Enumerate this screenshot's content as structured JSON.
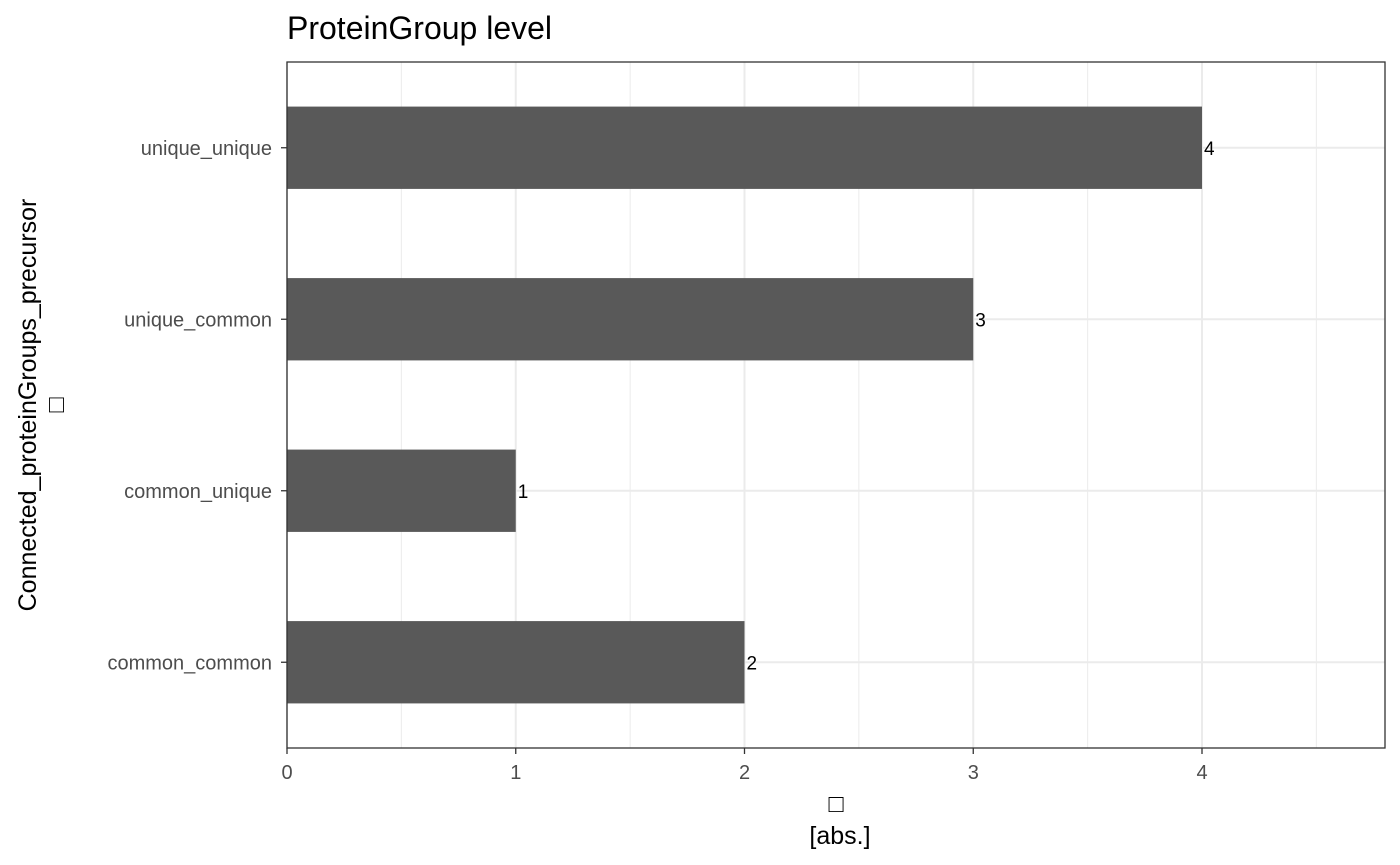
{
  "chart_data": {
    "type": "bar",
    "orientation": "horizontal",
    "title": "ProteinGroup level",
    "xlabel_glyph": "□",
    "xlabel": "[abs.]",
    "ylabel": "Connected_proteinGroups_precursor",
    "ylabel_glyph": "□",
    "categories": [
      "common_common",
      "common_unique",
      "unique_common",
      "unique_unique"
    ],
    "values": [
      2,
      1,
      3,
      4
    ],
    "data_labels": [
      "2",
      "1",
      "3",
      "4"
    ],
    "xlim": [
      0,
      4.8
    ],
    "x_ticks": [
      0,
      1,
      2,
      3,
      4
    ],
    "x_tick_labels": [
      "0",
      "1",
      "2",
      "3",
      "4"
    ],
    "grid": true,
    "legend": "none",
    "colors": {
      "bar": "#595959",
      "grid": "#ebebeb",
      "panel_border": "#333333",
      "tick_text": "#4d4d4d",
      "text": "#000000"
    }
  }
}
